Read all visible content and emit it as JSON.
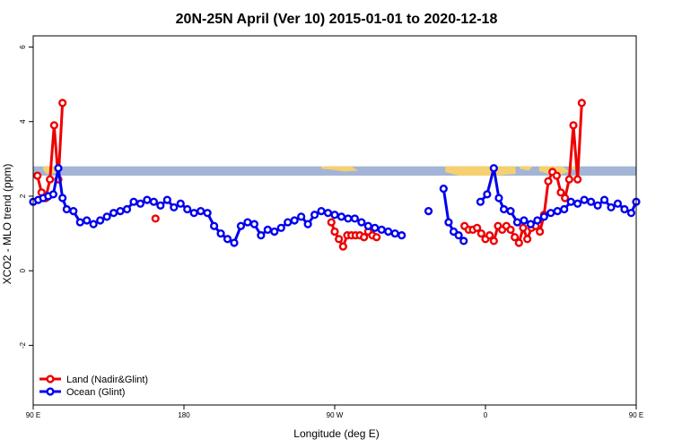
{
  "chart_data": {
    "type": "line",
    "title": "20N-25N April (Ver 10)   2015-01-01 to 2020-12-18",
    "xlabel": "Longitude (deg E)",
    "ylabel": "XCO2 - MLO trend (ppm)",
    "xlim": [
      90,
      450
    ],
    "ylim": [
      -3.6,
      6.3
    ],
    "x_ticks": [
      {
        "value": 90,
        "label": "90 E"
      },
      {
        "value": 180,
        "label": "180"
      },
      {
        "value": 270,
        "label": "90 W"
      },
      {
        "value": 360,
        "label": "0"
      },
      {
        "value": 450,
        "label": "90 E"
      },
      {
        "value": 540,
        "label": "180"
      }
    ],
    "y_ticks": [
      {
        "value": -2,
        "label": "-2"
      },
      {
        "value": 0,
        "label": "0"
      },
      {
        "value": 2,
        "label": "2"
      },
      {
        "value": 4,
        "label": "4"
      },
      {
        "value": 6,
        "label": "6"
      }
    ],
    "legend_position": "bottom-left",
    "colors": {
      "land": "#ee0000",
      "ocean": "#0000ee",
      "map_ocean": "#a3b5d6",
      "map_land": "#f5d06f"
    },
    "map_strip": {
      "y_bottom": 2.55,
      "y_top": 2.8
    },
    "series": [
      {
        "name": "Land (Nadir&Glint)",
        "color": "#ee0000",
        "segments": [
          [
            [
              92.5,
              2.55
            ],
            [
              95,
              2.1
            ],
            [
              97.5,
              1.95
            ],
            [
              100,
              2.45
            ],
            [
              102.5,
              3.9
            ],
            [
              105,
              2.45
            ],
            [
              107.5,
              4.5
            ]
          ],
          [
            [
              163,
              1.4
            ]
          ],
          [
            [
              268,
              1.3
            ],
            [
              270,
              1.05
            ],
            [
              272.5,
              0.85
            ],
            [
              275,
              0.65
            ],
            [
              277.5,
              0.95
            ],
            [
              280,
              0.95
            ],
            [
              282.5,
              0.95
            ],
            [
              285,
              0.95
            ],
            [
              287.5,
              0.9
            ],
            [
              290,
              1.05
            ],
            [
              292.5,
              0.95
            ],
            [
              295,
              0.9
            ]
          ],
          [
            [
              347.5,
              1.2
            ],
            [
              350,
              1.1
            ],
            [
              352.5,
              1.1
            ],
            [
              355,
              1.15
            ],
            [
              357.5,
              1.0
            ],
            [
              360,
              0.85
            ],
            [
              362.5,
              0.95
            ],
            [
              365,
              0.8
            ],
            [
              367.5,
              1.2
            ],
            [
              370,
              1.1
            ],
            [
              372.5,
              1.2
            ],
            [
              375,
              1.1
            ],
            [
              377.5,
              0.9
            ],
            [
              380,
              0.75
            ],
            [
              382.5,
              1.15
            ],
            [
              385,
              0.85
            ],
            [
              387.5,
              1.15
            ],
            [
              390,
              1.2
            ],
            [
              392.5,
              1.05
            ],
            [
              395,
              1.5
            ],
            [
              397.5,
              2.4
            ],
            [
              400,
              2.65
            ],
            [
              402.5,
              2.55
            ],
            [
              405,
              2.1
            ],
            [
              407.5,
              1.95
            ],
            [
              410,
              2.45
            ],
            [
              412.5,
              3.9
            ],
            [
              415,
              2.45
            ],
            [
              417.5,
              4.5
            ]
          ]
        ]
      },
      {
        "name": "Ocean (Glint)",
        "color": "#0000ee",
        "segments": [
          [
            [
              90,
              1.85
            ],
            [
              93,
              1.9
            ],
            [
              96,
              1.95
            ],
            [
              99,
              2.0
            ],
            [
              102,
              2.05
            ],
            [
              105,
              2.75
            ],
            [
              107.5,
              1.95
            ],
            [
              110,
              1.65
            ],
            [
              114,
              1.6
            ],
            [
              118,
              1.3
            ],
            [
              122,
              1.35
            ],
            [
              126,
              1.25
            ],
            [
              130,
              1.35
            ],
            [
              134,
              1.45
            ],
            [
              138,
              1.55
            ],
            [
              142,
              1.6
            ],
            [
              146,
              1.65
            ],
            [
              150,
              1.85
            ],
            [
              154,
              1.8
            ],
            [
              158,
              1.9
            ],
            [
              162,
              1.85
            ],
            [
              166,
              1.75
            ],
            [
              170,
              1.9
            ],
            [
              174,
              1.7
            ],
            [
              178,
              1.8
            ],
            [
              182,
              1.65
            ],
            [
              186,
              1.55
            ],
            [
              190,
              1.6
            ],
            [
              194,
              1.55
            ],
            [
              198,
              1.2
            ],
            [
              202,
              1.0
            ],
            [
              206,
              0.85
            ],
            [
              210,
              0.75
            ],
            [
              214,
              1.2
            ],
            [
              218,
              1.3
            ],
            [
              222,
              1.25
            ],
            [
              226,
              0.95
            ],
            [
              230,
              1.1
            ],
            [
              234,
              1.05
            ],
            [
              238,
              1.15
            ],
            [
              242,
              1.3
            ],
            [
              246,
              1.35
            ],
            [
              250,
              1.45
            ],
            [
              254,
              1.25
            ],
            [
              258,
              1.5
            ],
            [
              262,
              1.6
            ],
            [
              266,
              1.55
            ],
            [
              270,
              1.5
            ],
            [
              274,
              1.45
            ],
            [
              278,
              1.4
            ],
            [
              282,
              1.4
            ],
            [
              286,
              1.3
            ],
            [
              290,
              1.2
            ],
            [
              294,
              1.15
            ],
            [
              298,
              1.1
            ],
            [
              302,
              1.05
            ],
            [
              306,
              1.0
            ],
            [
              310,
              0.95
            ]
          ],
          [
            [
              326,
              1.6
            ]
          ],
          [
            [
              335,
              2.2
            ],
            [
              338,
              1.3
            ],
            [
              341,
              1.05
            ],
            [
              344,
              0.95
            ],
            [
              347,
              0.8
            ]
          ],
          [
            [
              357,
              1.85
            ],
            [
              361,
              2.05
            ],
            [
              365,
              2.75
            ],
            [
              368,
              1.95
            ],
            [
              371,
              1.65
            ],
            [
              375,
              1.6
            ],
            [
              379,
              1.3
            ],
            [
              383,
              1.35
            ],
            [
              387,
              1.25
            ],
            [
              391,
              1.35
            ],
            [
              395,
              1.45
            ],
            [
              399,
              1.55
            ],
            [
              403,
              1.6
            ],
            [
              407,
              1.65
            ],
            [
              411,
              1.85
            ],
            [
              415,
              1.8
            ],
            [
              419,
              1.9
            ],
            [
              423,
              1.85
            ],
            [
              427,
              1.75
            ],
            [
              431,
              1.9
            ],
            [
              435,
              1.7
            ],
            [
              439,
              1.8
            ],
            [
              443,
              1.65
            ],
            [
              447,
              1.55
            ],
            [
              450,
              1.85
            ]
          ]
        ]
      }
    ]
  }
}
